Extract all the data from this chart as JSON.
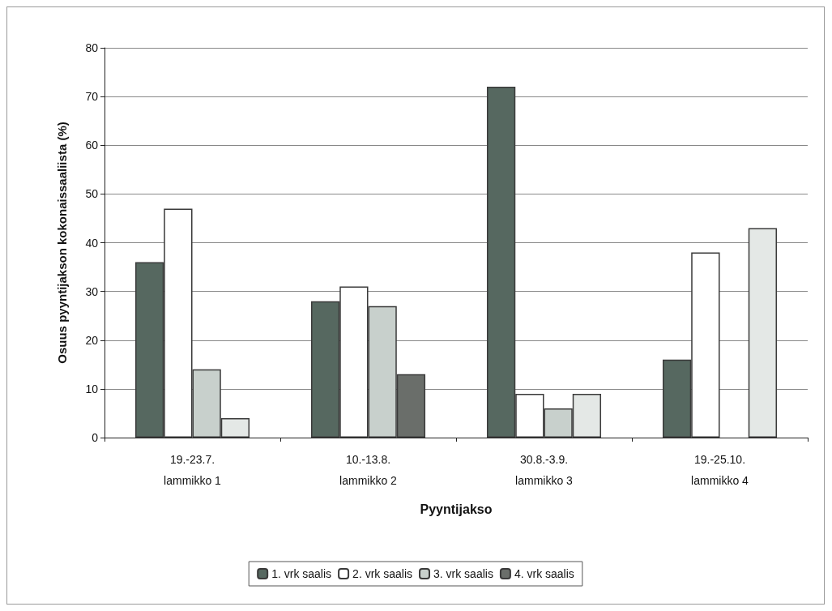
{
  "chart_data": {
    "type": "bar",
    "xlabel": "Pyyntijakso",
    "ylabel": "Osuus pyyntijakson kokonaissaaliista (%)",
    "categories": [
      "19.-23.7.\nlammikko 1",
      "10.-13.8.\nlammikko 2",
      "30.8.-3.9.\nlammikko 3",
      "19.-25.10.\nlammikko 4"
    ],
    "series": [
      {
        "name": "1. vrk saalis",
        "color": "#566860",
        "values": [
          36,
          28,
          72,
          16
        ]
      },
      {
        "name": "2. vrk saalis",
        "color": "#ffffff",
        "values": [
          47,
          31,
          9,
          38
        ]
      },
      {
        "name": "3. vrk saalis",
        "color": "#c8d0cc",
        "values": [
          14,
          27,
          6,
          0
        ]
      },
      {
        "name": "4. vrk saalis",
        "color": "#6a6e6a",
        "colors": [
          "#e4e8e6",
          "#6a6e6a",
          "#e4e8e6",
          "#e4e8e6"
        ],
        "values": [
          4,
          13,
          9,
          43
        ]
      }
    ],
    "ylim": [
      0,
      80
    ],
    "yticks": [
      0,
      10,
      20,
      30,
      40,
      50,
      60,
      70,
      80
    ],
    "grid": "y",
    "legend": "bottom"
  }
}
